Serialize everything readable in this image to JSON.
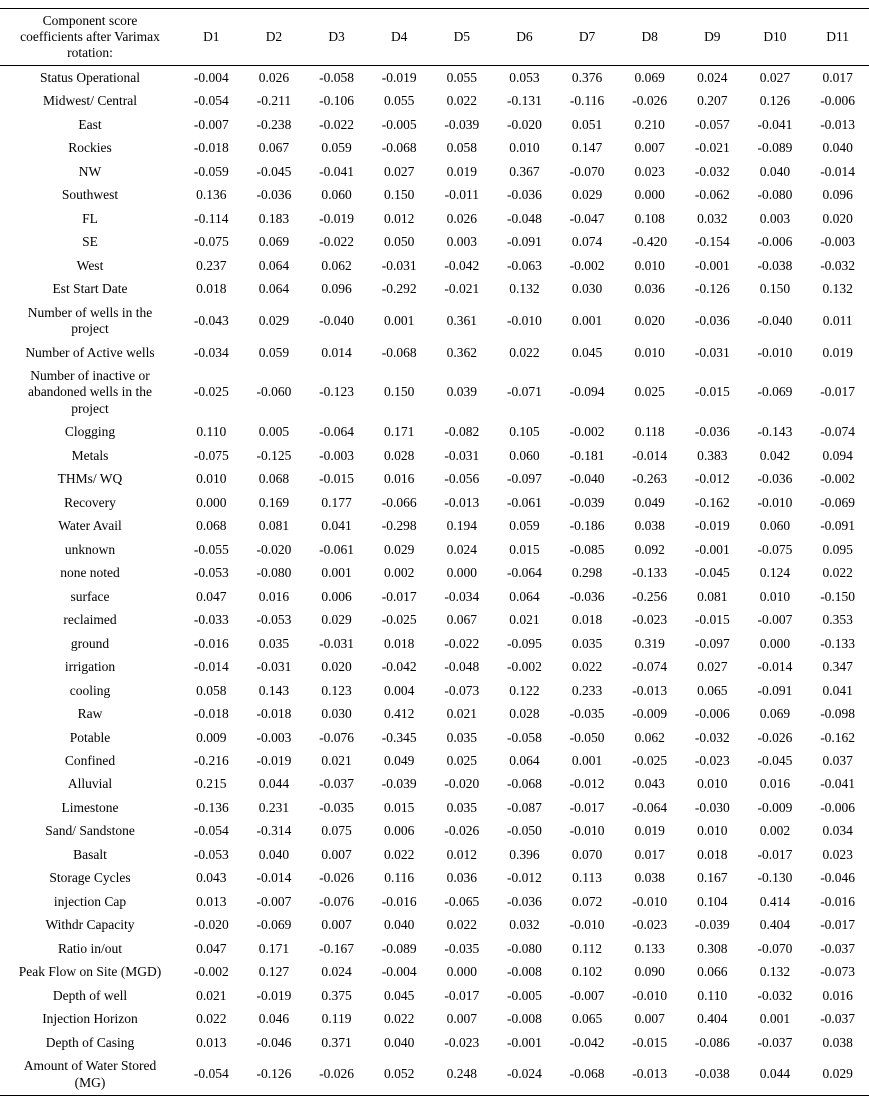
{
  "table": {
    "corner_header": "Component score coefficients after Varimax rotation:",
    "columns": [
      "D1",
      "D2",
      "D3",
      "D4",
      "D5",
      "D6",
      "D7",
      "D8",
      "D9",
      "D10",
      "D11"
    ],
    "rows": [
      {
        "label": "Status Operational",
        "values": [
          "-0.004",
          "0.026",
          "-0.058",
          "-0.019",
          "0.055",
          "0.053",
          "0.376",
          "0.069",
          "0.024",
          "0.027",
          "0.017"
        ]
      },
      {
        "label": "Midwest/ Central",
        "values": [
          "-0.054",
          "-0.211",
          "-0.106",
          "0.055",
          "0.022",
          "-0.131",
          "-0.116",
          "-0.026",
          "0.207",
          "0.126",
          "-0.006"
        ]
      },
      {
        "label": "East",
        "values": [
          "-0.007",
          "-0.238",
          "-0.022",
          "-0.005",
          "-0.039",
          "-0.020",
          "0.051",
          "0.210",
          "-0.057",
          "-0.041",
          "-0.013"
        ]
      },
      {
        "label": "Rockies",
        "values": [
          "-0.018",
          "0.067",
          "0.059",
          "-0.068",
          "0.058",
          "0.010",
          "0.147",
          "0.007",
          "-0.021",
          "-0.089",
          "0.040"
        ]
      },
      {
        "label": "NW",
        "values": [
          "-0.059",
          "-0.045",
          "-0.041",
          "0.027",
          "0.019",
          "0.367",
          "-0.070",
          "0.023",
          "-0.032",
          "0.040",
          "-0.014"
        ]
      },
      {
        "label": "Southwest",
        "values": [
          "0.136",
          "-0.036",
          "0.060",
          "0.150",
          "-0.011",
          "-0.036",
          "0.029",
          "0.000",
          "-0.062",
          "-0.080",
          "0.096"
        ]
      },
      {
        "label": "FL",
        "values": [
          "-0.114",
          "0.183",
          "-0.019",
          "0.012",
          "0.026",
          "-0.048",
          "-0.047",
          "0.108",
          "0.032",
          "0.003",
          "0.020"
        ]
      },
      {
        "label": "SE",
        "values": [
          "-0.075",
          "0.069",
          "-0.022",
          "0.050",
          "0.003",
          "-0.091",
          "0.074",
          "-0.420",
          "-0.154",
          "-0.006",
          "-0.003"
        ]
      },
      {
        "label": "West",
        "values": [
          "0.237",
          "0.064",
          "0.062",
          "-0.031",
          "-0.042",
          "-0.063",
          "-0.002",
          "0.010",
          "-0.001",
          "-0.038",
          "-0.032"
        ]
      },
      {
        "label": "Est Start Date",
        "values": [
          "0.018",
          "0.064",
          "0.096",
          "-0.292",
          "-0.021",
          "0.132",
          "0.030",
          "0.036",
          "-0.126",
          "0.150",
          "0.132"
        ]
      },
      {
        "label": "Number of wells in the project",
        "values": [
          "-0.043",
          "0.029",
          "-0.040",
          "0.001",
          "0.361",
          "-0.010",
          "0.001",
          "0.020",
          "-0.036",
          "-0.040",
          "0.011"
        ]
      },
      {
        "label": "Number of Active wells",
        "values": [
          "-0.034",
          "0.059",
          "0.014",
          "-0.068",
          "0.362",
          "0.022",
          "0.045",
          "0.010",
          "-0.031",
          "-0.010",
          "0.019"
        ]
      },
      {
        "label": "Number of inactive or abandoned wells in the project",
        "values": [
          "-0.025",
          "-0.060",
          "-0.123",
          "0.150",
          "0.039",
          "-0.071",
          "-0.094",
          "0.025",
          "-0.015",
          "-0.069",
          "-0.017"
        ]
      },
      {
        "label": "Clogging",
        "values": [
          "0.110",
          "0.005",
          "-0.064",
          "0.171",
          "-0.082",
          "0.105",
          "-0.002",
          "0.118",
          "-0.036",
          "-0.143",
          "-0.074"
        ]
      },
      {
        "label": "Metals",
        "values": [
          "-0.075",
          "-0.125",
          "-0.003",
          "0.028",
          "-0.031",
          "0.060",
          "-0.181",
          "-0.014",
          "0.383",
          "0.042",
          "0.094"
        ]
      },
      {
        "label": "THMs/ WQ",
        "values": [
          "0.010",
          "0.068",
          "-0.015",
          "0.016",
          "-0.056",
          "-0.097",
          "-0.040",
          "-0.263",
          "-0.012",
          "-0.036",
          "-0.002"
        ]
      },
      {
        "label": "Recovery",
        "values": [
          "0.000",
          "0.169",
          "0.177",
          "-0.066",
          "-0.013",
          "-0.061",
          "-0.039",
          "0.049",
          "-0.162",
          "-0.010",
          "-0.069"
        ]
      },
      {
        "label": "Water Avail",
        "values": [
          "0.068",
          "0.081",
          "0.041",
          "-0.298",
          "0.194",
          "0.059",
          "-0.186",
          "0.038",
          "-0.019",
          "0.060",
          "-0.091"
        ]
      },
      {
        "label": "unknown",
        "values": [
          "-0.055",
          "-0.020",
          "-0.061",
          "0.029",
          "0.024",
          "0.015",
          "-0.085",
          "0.092",
          "-0.001",
          "-0.075",
          "0.095"
        ]
      },
      {
        "label": "none noted",
        "values": [
          "-0.053",
          "-0.080",
          "0.001",
          "0.002",
          "0.000",
          "-0.064",
          "0.298",
          "-0.133",
          "-0.045",
          "0.124",
          "0.022"
        ]
      },
      {
        "label": "surface",
        "values": [
          "0.047",
          "0.016",
          "0.006",
          "-0.017",
          "-0.034",
          "0.064",
          "-0.036",
          "-0.256",
          "0.081",
          "0.010",
          "-0.150"
        ]
      },
      {
        "label": "reclaimed",
        "values": [
          "-0.033",
          "-0.053",
          "0.029",
          "-0.025",
          "0.067",
          "0.021",
          "0.018",
          "-0.023",
          "-0.015",
          "-0.007",
          "0.353"
        ]
      },
      {
        "label": "ground",
        "values": [
          "-0.016",
          "0.035",
          "-0.031",
          "0.018",
          "-0.022",
          "-0.095",
          "0.035",
          "0.319",
          "-0.097",
          "0.000",
          "-0.133"
        ]
      },
      {
        "label": "irrigation",
        "values": [
          "-0.014",
          "-0.031",
          "0.020",
          "-0.042",
          "-0.048",
          "-0.002",
          "0.022",
          "-0.074",
          "0.027",
          "-0.014",
          "0.347"
        ]
      },
      {
        "label": "cooling",
        "values": [
          "0.058",
          "0.143",
          "0.123",
          "0.004",
          "-0.073",
          "0.122",
          "0.233",
          "-0.013",
          "0.065",
          "-0.091",
          "0.041"
        ]
      },
      {
        "label": "Raw",
        "values": [
          "-0.018",
          "-0.018",
          "0.030",
          "0.412",
          "0.021",
          "0.028",
          "-0.035",
          "-0.009",
          "-0.006",
          "0.069",
          "-0.098"
        ]
      },
      {
        "label": "Potable",
        "values": [
          "0.009",
          "-0.003",
          "-0.076",
          "-0.345",
          "0.035",
          "-0.058",
          "-0.050",
          "0.062",
          "-0.032",
          "-0.026",
          "-0.162"
        ]
      },
      {
        "label": "Confined",
        "values": [
          "-0.216",
          "-0.019",
          "0.021",
          "0.049",
          "0.025",
          "0.064",
          "0.001",
          "-0.025",
          "-0.023",
          "-0.045",
          "0.037"
        ]
      },
      {
        "label": "Alluvial",
        "values": [
          "0.215",
          "0.044",
          "-0.037",
          "-0.039",
          "-0.020",
          "-0.068",
          "-0.012",
          "0.043",
          "0.010",
          "0.016",
          "-0.041"
        ]
      },
      {
        "label": "Limestone",
        "values": [
          "-0.136",
          "0.231",
          "-0.035",
          "0.015",
          "0.035",
          "-0.087",
          "-0.017",
          "-0.064",
          "-0.030",
          "-0.009",
          "-0.006"
        ]
      },
      {
        "label": "Sand/ Sandstone",
        "values": [
          "-0.054",
          "-0.314",
          "0.075",
          "0.006",
          "-0.026",
          "-0.050",
          "-0.010",
          "0.019",
          "0.010",
          "0.002",
          "0.034"
        ]
      },
      {
        "label": "Basalt",
        "values": [
          "-0.053",
          "0.040",
          "0.007",
          "0.022",
          "0.012",
          "0.396",
          "0.070",
          "0.017",
          "0.018",
          "-0.017",
          "0.023"
        ]
      },
      {
        "label": "Storage Cycles",
        "values": [
          "0.043",
          "-0.014",
          "-0.026",
          "0.116",
          "0.036",
          "-0.012",
          "0.113",
          "0.038",
          "0.167",
          "-0.130",
          "-0.046"
        ]
      },
      {
        "label": "injection Cap",
        "values": [
          "0.013",
          "-0.007",
          "-0.076",
          "-0.016",
          "-0.065",
          "-0.036",
          "0.072",
          "-0.010",
          "0.104",
          "0.414",
          "-0.016"
        ]
      },
      {
        "label": "Withdr Capacity",
        "values": [
          "-0.020",
          "-0.069",
          "0.007",
          "0.040",
          "0.022",
          "0.032",
          "-0.010",
          "-0.023",
          "-0.039",
          "0.404",
          "-0.017"
        ]
      },
      {
        "label": "Ratio in/out",
        "values": [
          "0.047",
          "0.171",
          "-0.167",
          "-0.089",
          "-0.035",
          "-0.080",
          "0.112",
          "0.133",
          "0.308",
          "-0.070",
          "-0.037"
        ]
      },
      {
        "label": "Peak Flow on Site (MGD)",
        "values": [
          "-0.002",
          "0.127",
          "0.024",
          "-0.004",
          "0.000",
          "-0.008",
          "0.102",
          "0.090",
          "0.066",
          "0.132",
          "-0.073"
        ]
      },
      {
        "label": "Depth of well",
        "values": [
          "0.021",
          "-0.019",
          "0.375",
          "0.045",
          "-0.017",
          "-0.005",
          "-0.007",
          "-0.010",
          "0.110",
          "-0.032",
          "0.016"
        ]
      },
      {
        "label": "Injection Horizon",
        "values": [
          "0.022",
          "0.046",
          "0.119",
          "0.022",
          "0.007",
          "-0.008",
          "0.065",
          "0.007",
          "0.404",
          "0.001",
          "-0.037"
        ]
      },
      {
        "label": "Depth of Casing",
        "values": [
          "0.013",
          "-0.046",
          "0.371",
          "0.040",
          "-0.023",
          "-0.001",
          "-0.042",
          "-0.015",
          "-0.086",
          "-0.037",
          "0.038"
        ]
      },
      {
        "label": "Amount of Water Stored (MG)",
        "values": [
          "-0.054",
          "-0.126",
          "-0.026",
          "0.052",
          "0.248",
          "-0.024",
          "-0.068",
          "-0.013",
          "-0.038",
          "0.044",
          "0.029"
        ]
      }
    ]
  },
  "colors": {
    "text": "#000000",
    "border": "#000000",
    "background": "#ffffff"
  }
}
